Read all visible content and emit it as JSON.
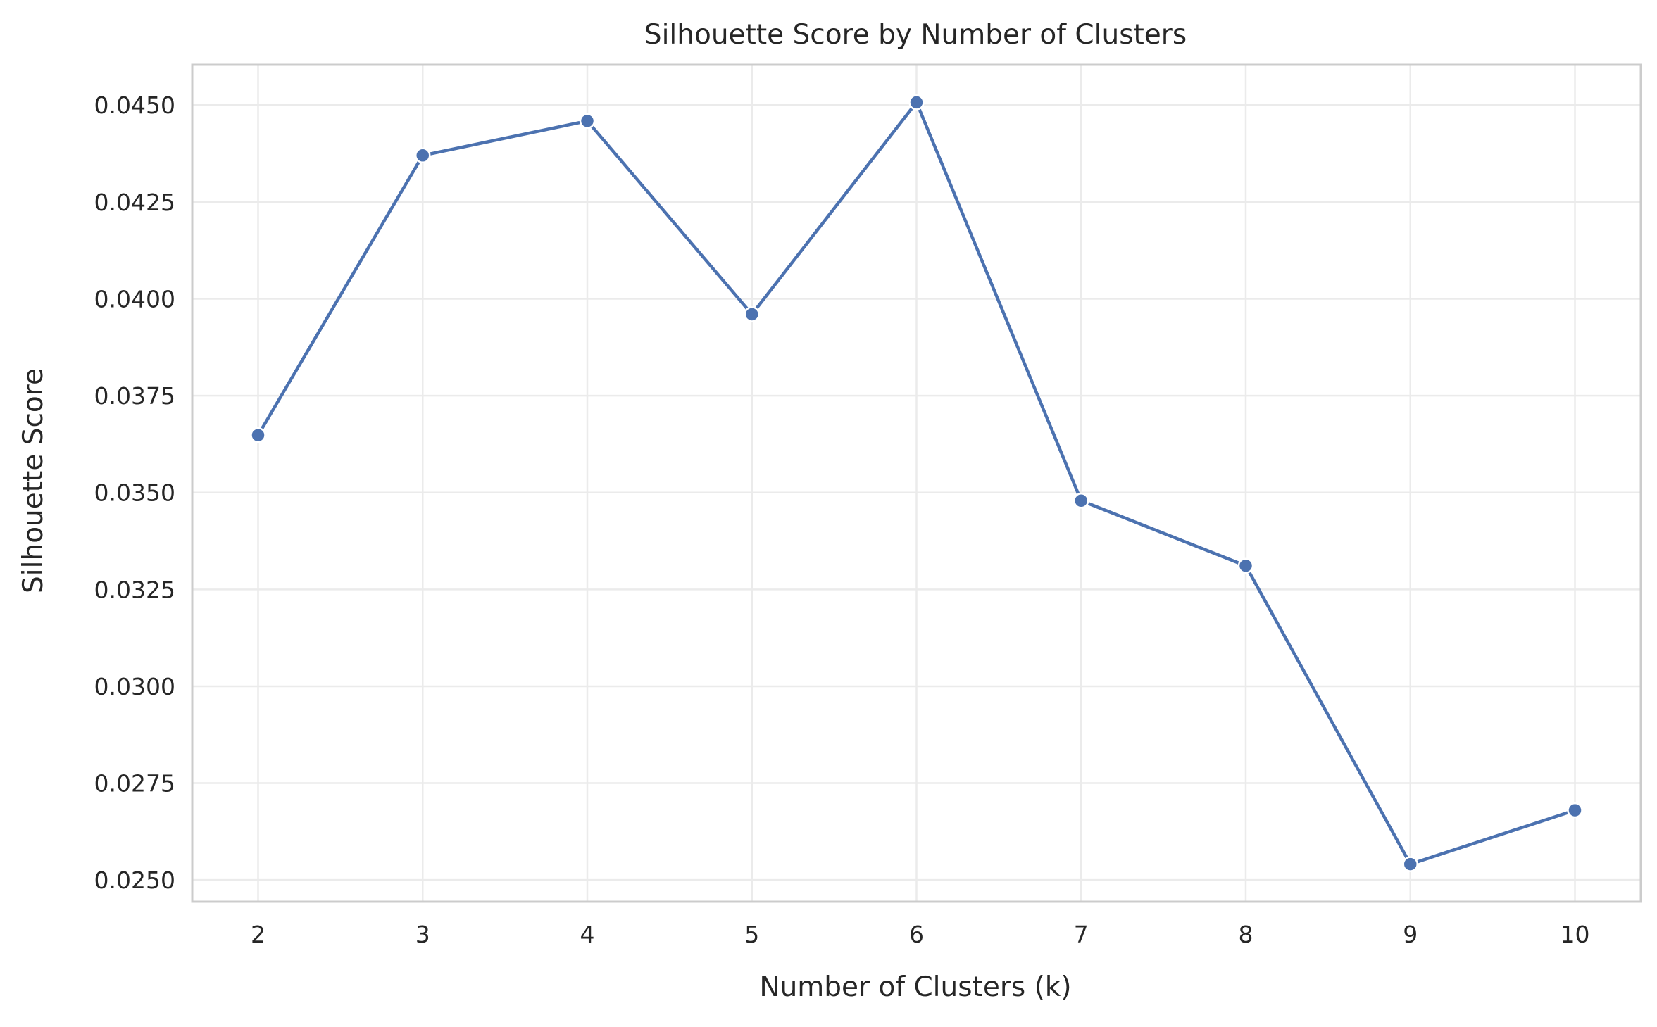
{
  "chart_data": {
    "type": "line",
    "title": "Silhouette Score by Number of Clusters",
    "xlabel": "Number of Clusters (k)",
    "ylabel": "Silhouette Score",
    "x": [
      2,
      3,
      4,
      5,
      6,
      7,
      8,
      9,
      10
    ],
    "x_tick_labels": [
      "2",
      "3",
      "4",
      "5",
      "6",
      "7",
      "8",
      "9",
      "10"
    ],
    "y_ticks": [
      0.025,
      0.0275,
      0.03,
      0.0325,
      0.035,
      0.0375,
      0.04,
      0.0425,
      0.045
    ],
    "y_tick_labels": [
      "0.0250",
      "0.0275",
      "0.0300",
      "0.0325",
      "0.0350",
      "0.0375",
      "0.0400",
      "0.0425",
      "0.0450"
    ],
    "xlim": [
      1.6,
      10.4
    ],
    "ylim": [
      0.02444,
      0.04604
    ],
    "grid": true,
    "series": [
      {
        "values": [
          0.03648,
          0.0437,
          0.04459,
          0.0396,
          0.04507,
          0.03479,
          0.03311,
          0.02541,
          0.0268
        ],
        "color": "#4C72B0",
        "marker": "circle"
      }
    ]
  }
}
